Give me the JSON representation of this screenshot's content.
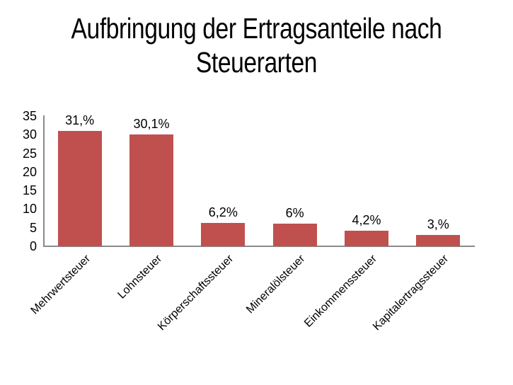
{
  "header": {
    "title_line1": "Aufbringung der Ertragsanteile nach",
    "title_line2": "Steuerarten"
  },
  "chart_data": {
    "type": "bar",
    "title": "Aufbringung der Ertragsanteile nach Steuerarten",
    "categories": [
      "Mehrwertsteuer",
      "Lohnsteuer",
      "Körperschaftssteuer",
      "Mineralölsteuer",
      "Einkommenssteuer",
      "Kapitalertragssteuer"
    ],
    "values": [
      31,
      30.1,
      6.2,
      6,
      4.2,
      3
    ],
    "value_labels": [
      "31,%",
      "30,1%",
      "6,2%",
      "6%",
      "4,2%",
      "3,%"
    ],
    "xlabel": "",
    "ylabel": "",
    "ylim": [
      0,
      35
    ],
    "yticks": [
      35,
      30,
      25,
      20,
      15,
      10,
      5,
      0
    ],
    "grid": false,
    "legend": false,
    "colors": {
      "bar": "#c0504d",
      "axis": "#8a8a8a",
      "text": "#000000",
      "background": "#ffffff"
    }
  }
}
